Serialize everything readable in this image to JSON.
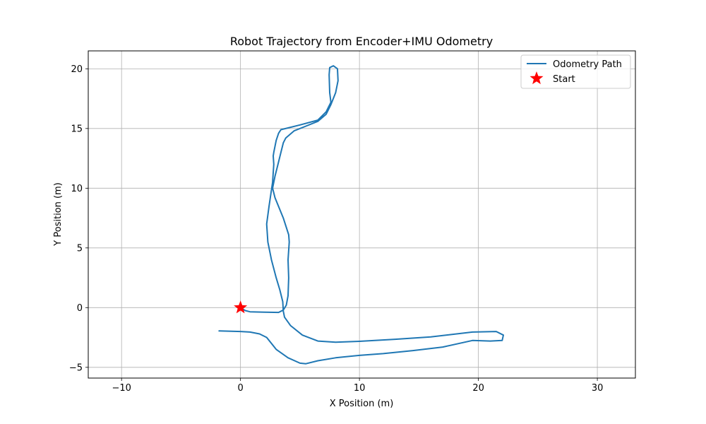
{
  "chart_data": {
    "type": "line",
    "title": "Robot Trajectory from Encoder+IMU Odometry",
    "xlabel": "X Position (m)",
    "ylabel": "Y Position (m)",
    "xlim": [
      -12.8,
      33.2
    ],
    "ylim": [
      -5.9,
      21.5
    ],
    "xticks": [
      -10,
      0,
      10,
      20,
      30
    ],
    "yticks": [
      -5,
      0,
      5,
      10,
      15,
      20
    ],
    "grid": true,
    "legend_position": "top-right",
    "colors": {
      "path": "#1f77b4",
      "start": "#ff0000"
    },
    "series": [
      {
        "name": "Odometry Path",
        "points": [
          [
            0.0,
            0.0
          ],
          [
            0.4,
            -0.25
          ],
          [
            0.8,
            -0.35
          ],
          [
            2.0,
            -0.38
          ],
          [
            3.2,
            -0.4
          ],
          [
            3.6,
            -0.2
          ],
          [
            3.85,
            0.2
          ],
          [
            4.0,
            1.0
          ],
          [
            4.05,
            2.5
          ],
          [
            4.0,
            4.0
          ],
          [
            4.1,
            5.5
          ],
          [
            4.05,
            6.1
          ],
          [
            3.6,
            7.5
          ],
          [
            2.9,
            9.2
          ],
          [
            2.7,
            10.0
          ],
          [
            2.9,
            11.0
          ],
          [
            3.1,
            11.8
          ],
          [
            3.4,
            13.0
          ],
          [
            3.6,
            13.8
          ],
          [
            3.8,
            14.2
          ],
          [
            4.5,
            14.8
          ],
          [
            5.5,
            15.2
          ],
          [
            6.5,
            15.6
          ],
          [
            7.2,
            16.2
          ],
          [
            7.6,
            17.0
          ],
          [
            8.0,
            18.0
          ],
          [
            8.2,
            19.0
          ],
          [
            8.15,
            20.0
          ],
          [
            7.8,
            20.25
          ],
          [
            7.5,
            20.1
          ],
          [
            7.45,
            19.5
          ],
          [
            7.5,
            18.0
          ],
          [
            7.6,
            17.2
          ],
          [
            7.2,
            16.4
          ],
          [
            6.5,
            15.7
          ],
          [
            5.0,
            15.3
          ],
          [
            3.4,
            14.9
          ],
          [
            3.2,
            14.6
          ],
          [
            3.0,
            14.0
          ],
          [
            2.8,
            13.0
          ],
          [
            2.75,
            12.7
          ],
          [
            2.8,
            12.0
          ],
          [
            2.7,
            10.5
          ],
          [
            2.4,
            8.5
          ],
          [
            2.2,
            7.0
          ],
          [
            2.3,
            5.5
          ],
          [
            2.6,
            4.0
          ],
          [
            3.0,
            2.5
          ],
          [
            3.3,
            1.5
          ],
          [
            3.55,
            0.5
          ],
          [
            3.6,
            -0.3
          ],
          [
            3.7,
            -0.8
          ],
          [
            4.2,
            -1.5
          ],
          [
            5.2,
            -2.3
          ],
          [
            6.5,
            -2.8
          ],
          [
            8.0,
            -2.9
          ],
          [
            10.0,
            -2.82
          ],
          [
            13.0,
            -2.65
          ],
          [
            16.0,
            -2.45
          ],
          [
            19.5,
            -2.05
          ],
          [
            21.5,
            -2.0
          ],
          [
            22.1,
            -2.3
          ],
          [
            22.0,
            -2.75
          ],
          [
            21.0,
            -2.8
          ],
          [
            19.5,
            -2.75
          ],
          [
            17.0,
            -3.3
          ],
          [
            14.5,
            -3.6
          ],
          [
            12.0,
            -3.85
          ],
          [
            10.0,
            -4.0
          ],
          [
            8.0,
            -4.2
          ],
          [
            6.5,
            -4.45
          ],
          [
            5.5,
            -4.7
          ],
          [
            5.0,
            -4.65
          ],
          [
            4.0,
            -4.2
          ],
          [
            3.0,
            -3.5
          ],
          [
            2.2,
            -2.5
          ],
          [
            1.6,
            -2.2
          ],
          [
            0.8,
            -2.05
          ],
          [
            0.0,
            -2.0
          ],
          [
            -1.8,
            -1.95
          ]
        ]
      }
    ],
    "markers": [
      {
        "name": "Start",
        "x": 0.0,
        "y": 0.0,
        "symbol": "star"
      }
    ]
  }
}
